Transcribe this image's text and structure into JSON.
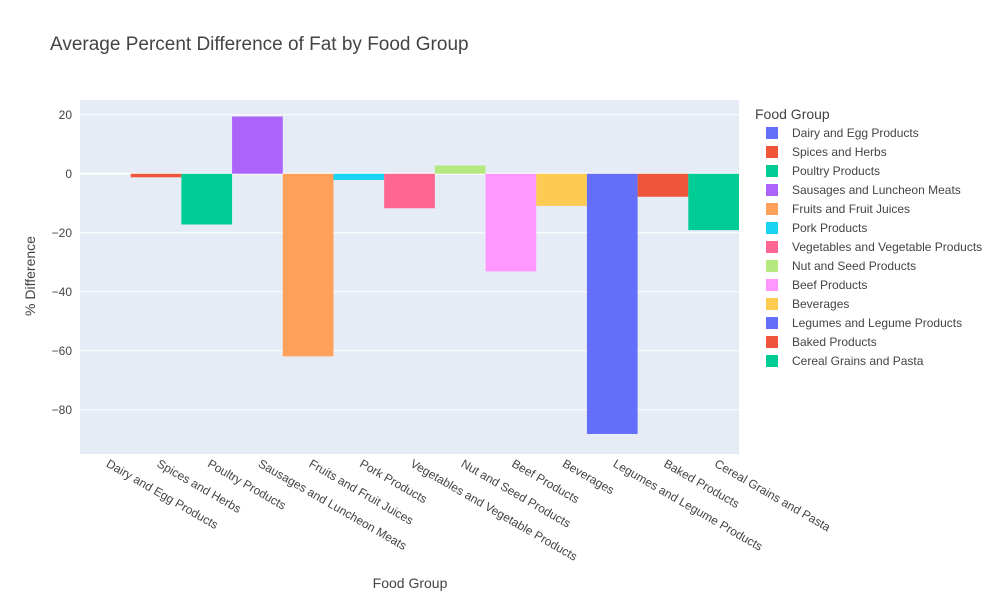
{
  "chart_data": {
    "type": "bar",
    "title": "Average Percent Difference of Fat by Food Group",
    "xlabel": "Food Group",
    "ylabel": "% Difference",
    "ylim": [
      -95,
      25
    ],
    "yticks": [
      20,
      0,
      -20,
      -40,
      -60,
      -80
    ],
    "grid": true,
    "legend_position": "right",
    "legend_title": "Food Group",
    "categories": [
      "Dairy and Egg Products",
      "Spices and Herbs",
      "Poultry Products",
      "Sausages and Luncheon Meats",
      "Fruits and Fruit Juices",
      "Pork Products",
      "Vegetables and Vegetable Products",
      "Nut and Seed Products",
      "Beef Products",
      "Beverages",
      "Legumes and Legume Products",
      "Baked Products",
      "Cereal Grains and Pasta"
    ],
    "series": [
      {
        "name": "Dairy and Egg Products",
        "value": 0,
        "color": "#636efa"
      },
      {
        "name": "Spices and Herbs",
        "value": -1.2,
        "color": "#EF553B"
      },
      {
        "name": "Poultry Products",
        "value": -17.2,
        "color": "#00cc96"
      },
      {
        "name": "Sausages and Luncheon Meats",
        "value": 19.4,
        "color": "#ab63fa"
      },
      {
        "name": "Fruits and Fruit Juices",
        "value": -61.9,
        "color": "#FFA15A"
      },
      {
        "name": "Pork Products",
        "value": -2.1,
        "color": "#19d3f3"
      },
      {
        "name": "Vegetables and Vegetable Products",
        "value": -11.7,
        "color": "#FF6692"
      },
      {
        "name": "Nut and Seed Products",
        "value": 2.8,
        "color": "#B6E880"
      },
      {
        "name": "Beef Products",
        "value": -33.1,
        "color": "#FF97FF"
      },
      {
        "name": "Beverages",
        "value": -10.9,
        "color": "#FECB52"
      },
      {
        "name": "Legumes and Legume Products",
        "value": -88.2,
        "color": "#636efa"
      },
      {
        "name": "Baked Products",
        "value": -7.8,
        "color": "#EF553B"
      },
      {
        "name": "Cereal Grains and Pasta",
        "value": -19.1,
        "color": "#00cc96"
      }
    ]
  }
}
